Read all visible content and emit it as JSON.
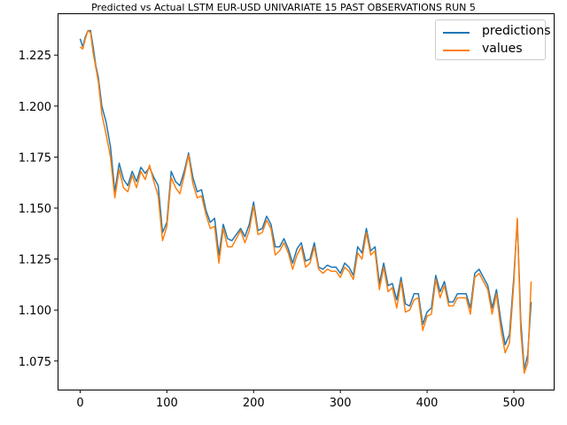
{
  "chart_data": {
    "type": "line",
    "title": "Predicted vs Actual LSTM EUR-USD UNIVARIATE 15 PAST OBSERVATIONS RUN 5",
    "xlabel": "",
    "ylabel": "",
    "xlim": [
      -26,
      546
    ],
    "ylim": [
      1.061,
      1.2455
    ],
    "xticks": [
      0,
      100,
      200,
      300,
      400,
      500
    ],
    "yticks": [
      1.075,
      1.1,
      1.125,
      1.15,
      1.175,
      1.2,
      1.225
    ],
    "ytick_labels": [
      "1.075",
      "1.100",
      "1.125",
      "1.150",
      "1.175",
      "1.200",
      "1.225"
    ],
    "grid": false,
    "legend_position": "top-right",
    "series": [
      {
        "name": "predictions",
        "color": "#1f77b4",
        "x": [
          0,
          3,
          6,
          9,
          12,
          15,
          18,
          21,
          25,
          30,
          35,
          40,
          45,
          50,
          55,
          60,
          65,
          70,
          75,
          80,
          85,
          90,
          95,
          100,
          105,
          110,
          115,
          120,
          125,
          130,
          135,
          140,
          145,
          150,
          155,
          160,
          165,
          170,
          175,
          180,
          185,
          190,
          195,
          200,
          205,
          210,
          215,
          220,
          225,
          230,
          235,
          240,
          245,
          250,
          255,
          260,
          265,
          270,
          275,
          280,
          285,
          290,
          295,
          300,
          305,
          310,
          315,
          320,
          325,
          330,
          335,
          340,
          345,
          350,
          355,
          360,
          365,
          370,
          375,
          380,
          385,
          390,
          395,
          400,
          405,
          410,
          415,
          420,
          425,
          430,
          435,
          440,
          445,
          450,
          455,
          460,
          465,
          470,
          475,
          480,
          485,
          490,
          495,
          500,
          504,
          508,
          512,
          516,
          520
        ],
        "values": [
          1.233,
          1.229,
          1.234,
          1.237,
          1.237,
          1.229,
          1.22,
          1.214,
          1.2,
          1.192,
          1.18,
          1.158,
          1.172,
          1.164,
          1.161,
          1.168,
          1.163,
          1.17,
          1.167,
          1.17,
          1.165,
          1.161,
          1.138,
          1.143,
          1.168,
          1.163,
          1.161,
          1.168,
          1.177,
          1.165,
          1.158,
          1.159,
          1.149,
          1.143,
          1.145,
          1.127,
          1.142,
          1.135,
          1.134,
          1.137,
          1.14,
          1.136,
          1.142,
          1.153,
          1.139,
          1.14,
          1.146,
          1.142,
          1.131,
          1.131,
          1.135,
          1.13,
          1.123,
          1.13,
          1.133,
          1.124,
          1.125,
          1.133,
          1.121,
          1.12,
          1.122,
          1.121,
          1.121,
          1.118,
          1.123,
          1.121,
          1.117,
          1.131,
          1.128,
          1.14,
          1.129,
          1.131,
          1.113,
          1.123,
          1.112,
          1.113,
          1.105,
          1.116,
          1.103,
          1.102,
          1.108,
          1.108,
          1.093,
          1.099,
          1.101,
          1.117,
          1.109,
          1.114,
          1.104,
          1.104,
          1.108,
          1.108,
          1.108,
          1.101,
          1.118,
          1.12,
          1.116,
          1.112,
          1.101,
          1.11,
          1.095,
          1.083,
          1.088,
          1.116,
          1.144,
          1.095,
          1.071,
          1.078,
          1.104
        ]
      },
      {
        "name": "values",
        "color": "#ff7f0e",
        "x": [
          0,
          3,
          6,
          9,
          12,
          15,
          18,
          21,
          25,
          30,
          35,
          40,
          45,
          50,
          55,
          60,
          65,
          70,
          75,
          80,
          85,
          90,
          95,
          100,
          105,
          110,
          115,
          120,
          125,
          130,
          135,
          140,
          145,
          150,
          155,
          160,
          165,
          170,
          175,
          180,
          185,
          190,
          195,
          200,
          205,
          210,
          215,
          220,
          225,
          230,
          235,
          240,
          245,
          250,
          255,
          260,
          265,
          270,
          275,
          280,
          285,
          290,
          295,
          300,
          305,
          310,
          315,
          320,
          325,
          330,
          335,
          340,
          345,
          350,
          355,
          360,
          365,
          370,
          375,
          380,
          385,
          390,
          395,
          400,
          405,
          410,
          415,
          420,
          425,
          430,
          435,
          440,
          445,
          450,
          455,
          460,
          465,
          470,
          475,
          480,
          485,
          490,
          495,
          500,
          504,
          508,
          512,
          516,
          520
        ],
        "values": [
          1.229,
          1.228,
          1.233,
          1.237,
          1.236,
          1.226,
          1.219,
          1.212,
          1.196,
          1.186,
          1.175,
          1.155,
          1.169,
          1.16,
          1.158,
          1.166,
          1.16,
          1.168,
          1.164,
          1.171,
          1.163,
          1.156,
          1.134,
          1.141,
          1.165,
          1.16,
          1.157,
          1.166,
          1.176,
          1.162,
          1.155,
          1.156,
          1.147,
          1.14,
          1.141,
          1.123,
          1.14,
          1.131,
          1.131,
          1.135,
          1.139,
          1.133,
          1.139,
          1.151,
          1.137,
          1.138,
          1.144,
          1.14,
          1.127,
          1.129,
          1.133,
          1.128,
          1.12,
          1.127,
          1.131,
          1.121,
          1.123,
          1.131,
          1.12,
          1.118,
          1.12,
          1.119,
          1.119,
          1.116,
          1.121,
          1.119,
          1.115,
          1.128,
          1.125,
          1.138,
          1.127,
          1.129,
          1.11,
          1.121,
          1.109,
          1.111,
          1.101,
          1.114,
          1.099,
          1.1,
          1.105,
          1.106,
          1.09,
          1.097,
          1.098,
          1.115,
          1.106,
          1.112,
          1.102,
          1.102,
          1.106,
          1.106,
          1.106,
          1.098,
          1.116,
          1.118,
          1.114,
          1.11,
          1.098,
          1.108,
          1.091,
          1.079,
          1.084,
          1.113,
          1.145,
          1.09,
          1.069,
          1.074,
          1.114
        ]
      }
    ]
  }
}
